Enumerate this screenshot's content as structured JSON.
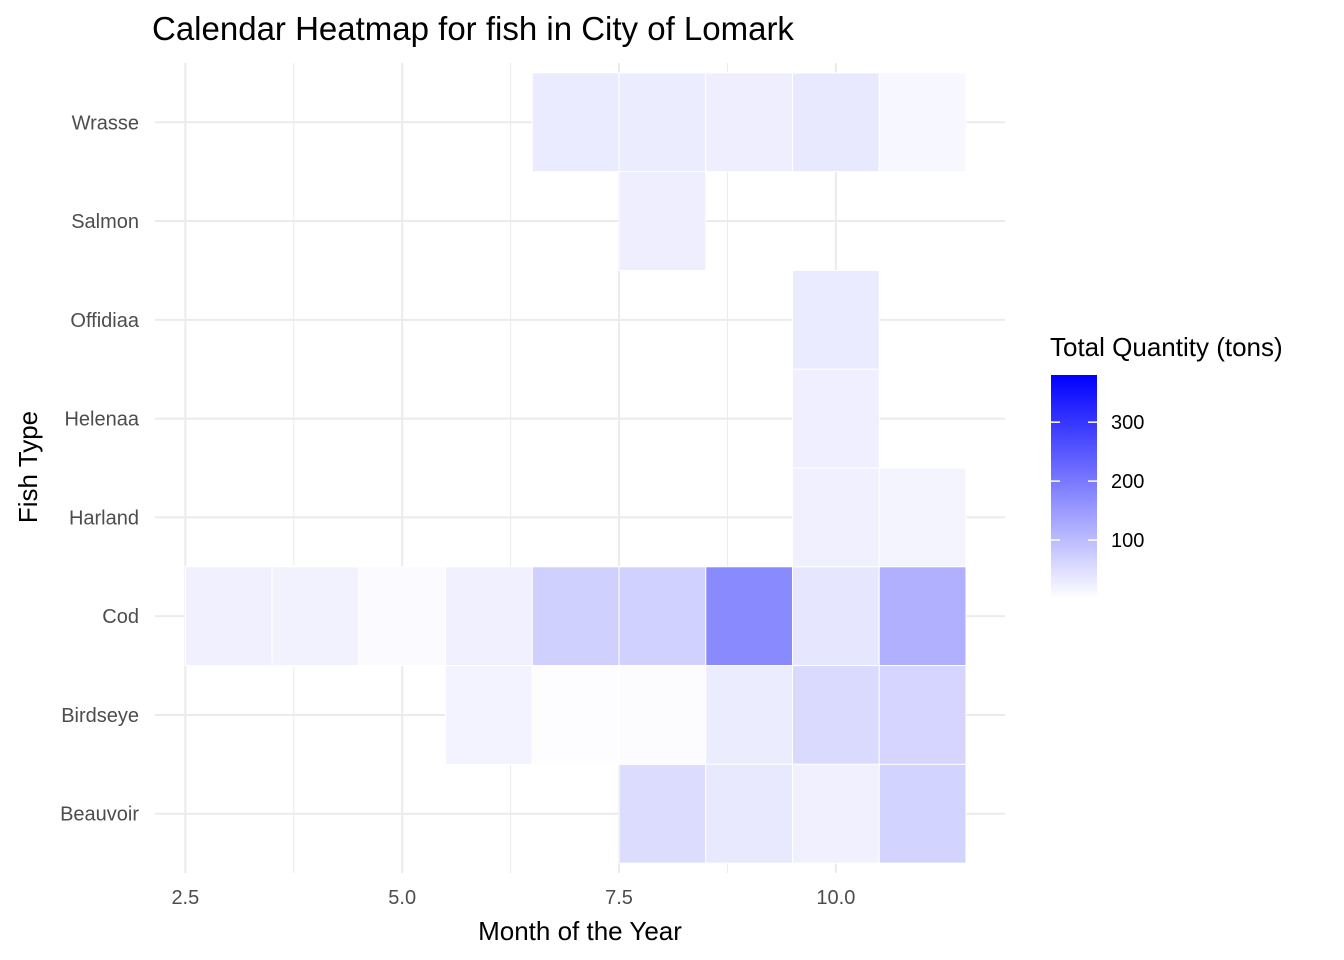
{
  "chart_data": {
    "type": "heatmap",
    "title": "Calendar Heatmap for fish in City of Lomark",
    "xlabel": "Month of the Year",
    "ylabel": "Fish Type",
    "x_ticks": [
      "2.5",
      "5.0",
      "7.5",
      "10.0"
    ],
    "x_tick_values": [
      2.5,
      5.0,
      7.5,
      10.0
    ],
    "xlim": [
      2.15,
      11.95
    ],
    "categories": [
      "Beauvoir",
      "Birdseye",
      "Cod",
      "Harland",
      "Helenaa",
      "Offidiaa",
      "Salmon",
      "Wrasse"
    ],
    "cells": [
      {
        "fish": "Wrasse",
        "month": 7,
        "value": 30
      },
      {
        "fish": "Wrasse",
        "month": 8,
        "value": 28
      },
      {
        "fish": "Wrasse",
        "month": 9,
        "value": 26
      },
      {
        "fish": "Wrasse",
        "month": 10,
        "value": 35
      },
      {
        "fish": "Wrasse",
        "month": 11,
        "value": 12
      },
      {
        "fish": "Salmon",
        "month": 8,
        "value": 25
      },
      {
        "fish": "Offidiaa",
        "month": 10,
        "value": 30
      },
      {
        "fish": "Helenaa",
        "month": 10,
        "value": 24
      },
      {
        "fish": "Harland",
        "month": 10,
        "value": 22
      },
      {
        "fish": "Harland",
        "month": 11,
        "value": 17
      },
      {
        "fish": "Cod",
        "month": 3,
        "value": 22
      },
      {
        "fish": "Cod",
        "month": 4,
        "value": 20
      },
      {
        "fish": "Cod",
        "month": 5,
        "value": 8
      },
      {
        "fish": "Cod",
        "month": 6,
        "value": 22
      },
      {
        "fish": "Cod",
        "month": 7,
        "value": 70
      },
      {
        "fish": "Cod",
        "month": 8,
        "value": 68
      },
      {
        "fish": "Cod",
        "month": 9,
        "value": 175
      },
      {
        "fish": "Cod",
        "month": 10,
        "value": 38
      },
      {
        "fish": "Cod",
        "month": 11,
        "value": 118
      },
      {
        "fish": "Birdseye",
        "month": 6,
        "value": 18
      },
      {
        "fish": "Birdseye",
        "month": 7,
        "value": 3
      },
      {
        "fish": "Birdseye",
        "month": 8,
        "value": 5
      },
      {
        "fish": "Birdseye",
        "month": 9,
        "value": 28
      },
      {
        "fish": "Birdseye",
        "month": 10,
        "value": 55
      },
      {
        "fish": "Birdseye",
        "month": 11,
        "value": 62
      },
      {
        "fish": "Beauvoir",
        "month": 8,
        "value": 52
      },
      {
        "fish": "Beauvoir",
        "month": 9,
        "value": 35
      },
      {
        "fish": "Beauvoir",
        "month": 10,
        "value": 22
      },
      {
        "fish": "Beauvoir",
        "month": 11,
        "value": 65
      }
    ],
    "legend": {
      "title": "Total Quantity (tons)",
      "placement": "right",
      "min": 0,
      "max": 380,
      "low_color": "#ffffff",
      "high_color": "#0000ff",
      "ticks": [
        {
          "value": 100,
          "label": "100"
        },
        {
          "value": 200,
          "label": "200"
        },
        {
          "value": 300,
          "label": "300"
        }
      ]
    },
    "grid": true,
    "gridline_color": "#ebebeb",
    "cell_border_color": "#ffffff"
  }
}
